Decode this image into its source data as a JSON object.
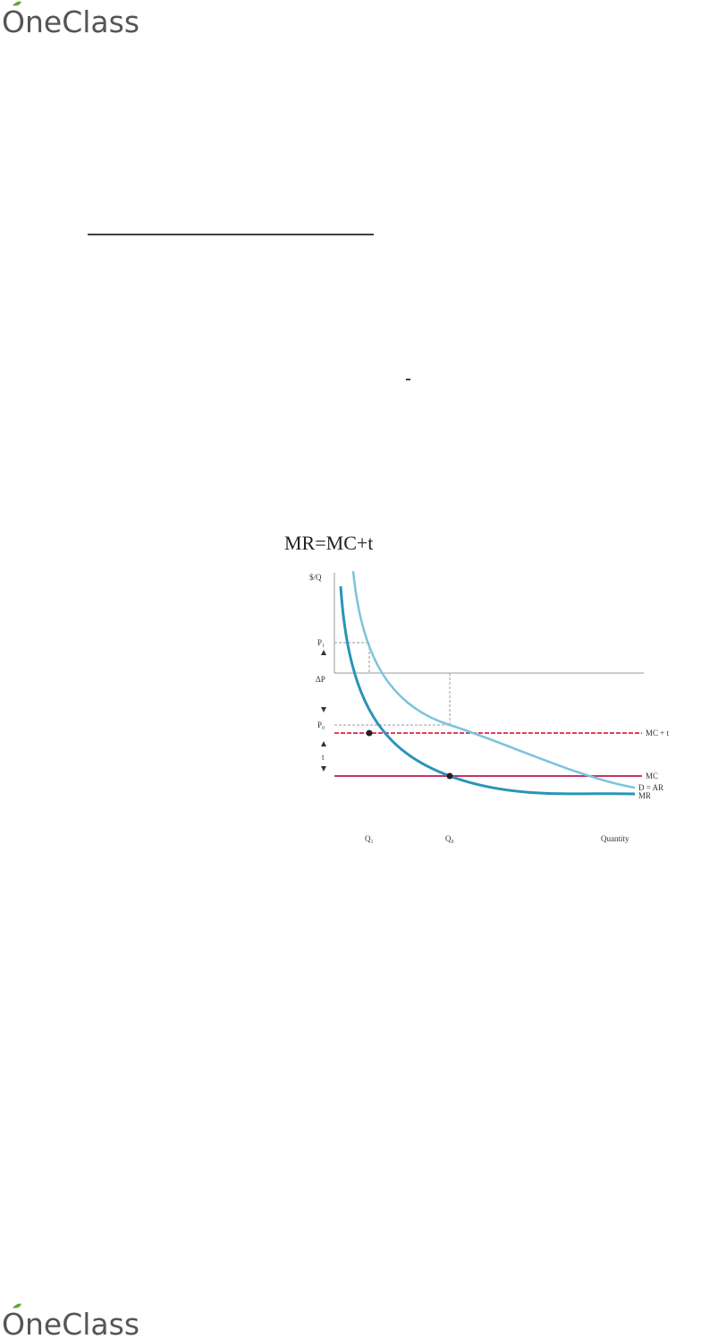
{
  "header": {
    "logo": "OneClass"
  },
  "figure": {
    "title": "MR=MC+t",
    "y_axis_label": "$/Q",
    "x_axis_label": "Quantity",
    "y_labels": [
      "P₁",
      "ΔP",
      "P₀",
      "t"
    ],
    "x_labels": [
      "Q₁",
      "Q₀"
    ],
    "curve_labels": [
      "MC + t",
      "D = AR",
      "MC",
      "MR"
    ]
  },
  "footer": {
    "logo": "OneClass"
  }
}
